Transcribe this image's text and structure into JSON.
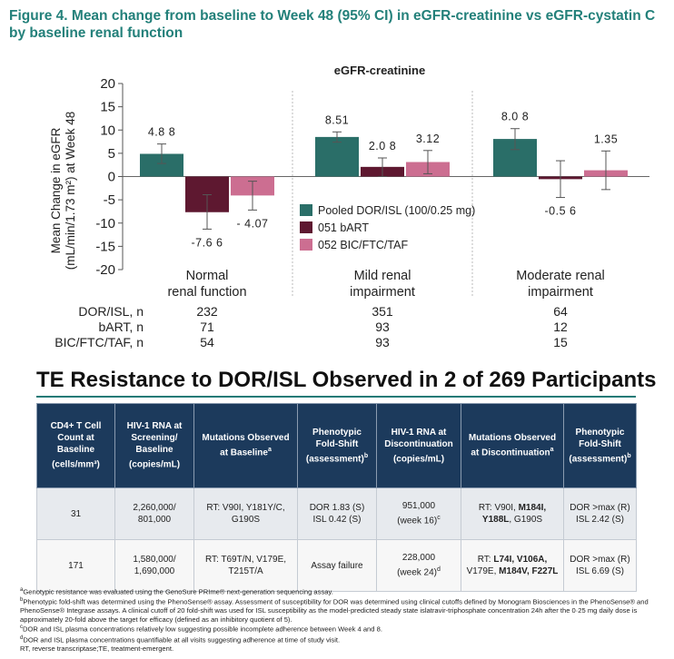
{
  "figure_title": "Figure 4. Mean change from baseline to Week 48 (95% CI) in eGFR-creatinine vs eGFR-cystatin C by baseline renal function",
  "colors": {
    "title": "#23807a",
    "pooled": "#2a6e68",
    "bart": "#5e1830",
    "bic": "#cc6e91",
    "table_header_bg": "#1c3a5c",
    "rule": "#1f7a77"
  },
  "chart_data": {
    "type": "bar",
    "title": "eGFR-creatinine",
    "ylabel_line1": "Mean Change in eGFR",
    "ylabel_line2": "(mL/min/1.73 m²) at Week 48",
    "ylim": [
      -20,
      20
    ],
    "yticks": [
      20,
      15,
      10,
      5,
      0,
      -5,
      -10,
      -15,
      -20
    ],
    "categories": [
      [
        "Normal",
        "renal function"
      ],
      [
        "Mild renal",
        "impairment"
      ],
      [
        "Moderate renal",
        "impairment"
      ]
    ],
    "series": [
      {
        "name": "Pooled DOR/ISL (100/0.25 mg)",
        "color": "#2a6e68",
        "values": [
          4.88,
          8.51,
          8.08
        ],
        "ci": [
          [
            2.8,
            7.0
          ],
          [
            7.4,
            9.6
          ],
          [
            5.8,
            10.3
          ]
        ],
        "labels": [
          "4.8 8",
          "8.51",
          "8.0 8"
        ]
      },
      {
        "name": "051 bART",
        "color": "#5e1830",
        "values": [
          -7.66,
          2.08,
          -0.56
        ],
        "ci": [
          [
            -11.3,
            -3.9
          ],
          [
            0.0,
            4.0
          ],
          [
            -4.5,
            3.4
          ]
        ],
        "labels": [
          "-7.6 6",
          "2.0 8",
          "-0.5 6"
        ]
      },
      {
        "name": "052 BIC/FTC/TAF",
        "color": "#cc6e91",
        "values": [
          -4.07,
          3.12,
          1.35
        ],
        "ci": [
          [
            -7.2,
            -1.0
          ],
          [
            0.6,
            5.6
          ],
          [
            -2.8,
            5.5
          ]
        ],
        "labels": [
          "- 4.07",
          "3.12",
          "1.35"
        ]
      }
    ],
    "n_rows": [
      {
        "label": "DOR/ISL, n",
        "values": [
          "232",
          "351",
          "64"
        ]
      },
      {
        "label": "bART, n",
        "values": [
          "71",
          "93",
          "12"
        ]
      },
      {
        "label": "BIC/FTC/TAF, n",
        "values": [
          "54",
          "93",
          "15"
        ]
      }
    ],
    "legend_position": "inside-center"
  },
  "te_title": "TE Resistance to DOR/ISL Observed in 2 of 269 Participants",
  "table": {
    "headers": [
      {
        "text": "CD4+ T Cell Count at Baseline (cells/mm³)",
        "sup": ""
      },
      {
        "text": "HIV-1 RNA at Screening/ Baseline (copies/mL)",
        "sup": ""
      },
      {
        "text": "Mutations Observed at Baseline",
        "sup": "a"
      },
      {
        "text": "Phenotypic Fold-Shift (assessment)",
        "sup": "b"
      },
      {
        "text": "HIV-1 RNA at Discontinuation (copies/mL)",
        "sup": ""
      },
      {
        "text": "Mutations Observed at Discontinuation",
        "sup": "a"
      },
      {
        "text": "Phenotypic Fold-Shift (assessment)",
        "sup": "b"
      }
    ],
    "rows": [
      {
        "cd4": "31",
        "rna_screen": [
          "2,260,000/",
          "801,000"
        ],
        "mut_base": [
          "RT: V90I, Y181Y/C,",
          "G190S"
        ],
        "fold_base": [
          "DOR 1.83 (S)",
          "ISL 0.42 (S)"
        ],
        "rna_disc": "951,000",
        "rna_disc_week": "(week 16)",
        "rna_disc_sup": "c",
        "mut_disc_l1_plain": "RT: V90I, ",
        "mut_disc_l1_bold": "M184I,",
        "mut_disc_l2_bold": "Y188L",
        "mut_disc_l2_plain": ", G190S",
        "fold_disc": [
          "DOR >max (R)",
          "ISL 2.42 (S)"
        ]
      },
      {
        "cd4": "171",
        "rna_screen": [
          "1,580,000/",
          "1,690,000"
        ],
        "mut_base": [
          "RT: T69T/N, V179E,",
          "T215T/A"
        ],
        "fold_base_single": "Assay failure",
        "rna_disc": "228,000",
        "rna_disc_week": "(week 24)",
        "rna_disc_sup": "d",
        "mut_disc_l1_plain": "RT: ",
        "mut_disc_l1_bold": "L74I, V106A,",
        "mut_disc_l2_plain": "V179E, ",
        "mut_disc_l2_bold": "M184V, F227L",
        "fold_disc": [
          "DOR >max (R)",
          "ISL 6.69 (S)"
        ]
      }
    ]
  },
  "footnotes": [
    {
      "sup": "a",
      "text": "Genotypic resistance was evaluated using the GenoSure PRIme® next-generation sequencing assay."
    },
    {
      "sup": "b",
      "text": "Phenotypic fold-shift was determined using the PhenoSense® assay. Assessment of susceptibility for DOR was determined using clinical cutoffs defined by Monogram Biosciences in the PhenoSense® and PhenoSense® Integrase assays. A clinical cutoff of 20 fold-shift was used for ISL susceptibility as the model-predicted steady state islatravir-triphosphate concentration 24h after the 0·25 mg daily dose is approximately 20-fold above the target for efficacy (defined as an inhibitory quotient of 5)."
    },
    {
      "sup": "c",
      "text": "DOR and ISL plasma concentrations relatively low suggesting possible incomplete adherence between Week 4 and 8."
    },
    {
      "sup": "d",
      "text": "DOR and ISL plasma concentrations quantifiable at all visits suggesting adherence at time of study visit."
    },
    {
      "sup": "",
      "text": "RT, reverse transcriptase;TE, treatment-emergent."
    }
  ]
}
